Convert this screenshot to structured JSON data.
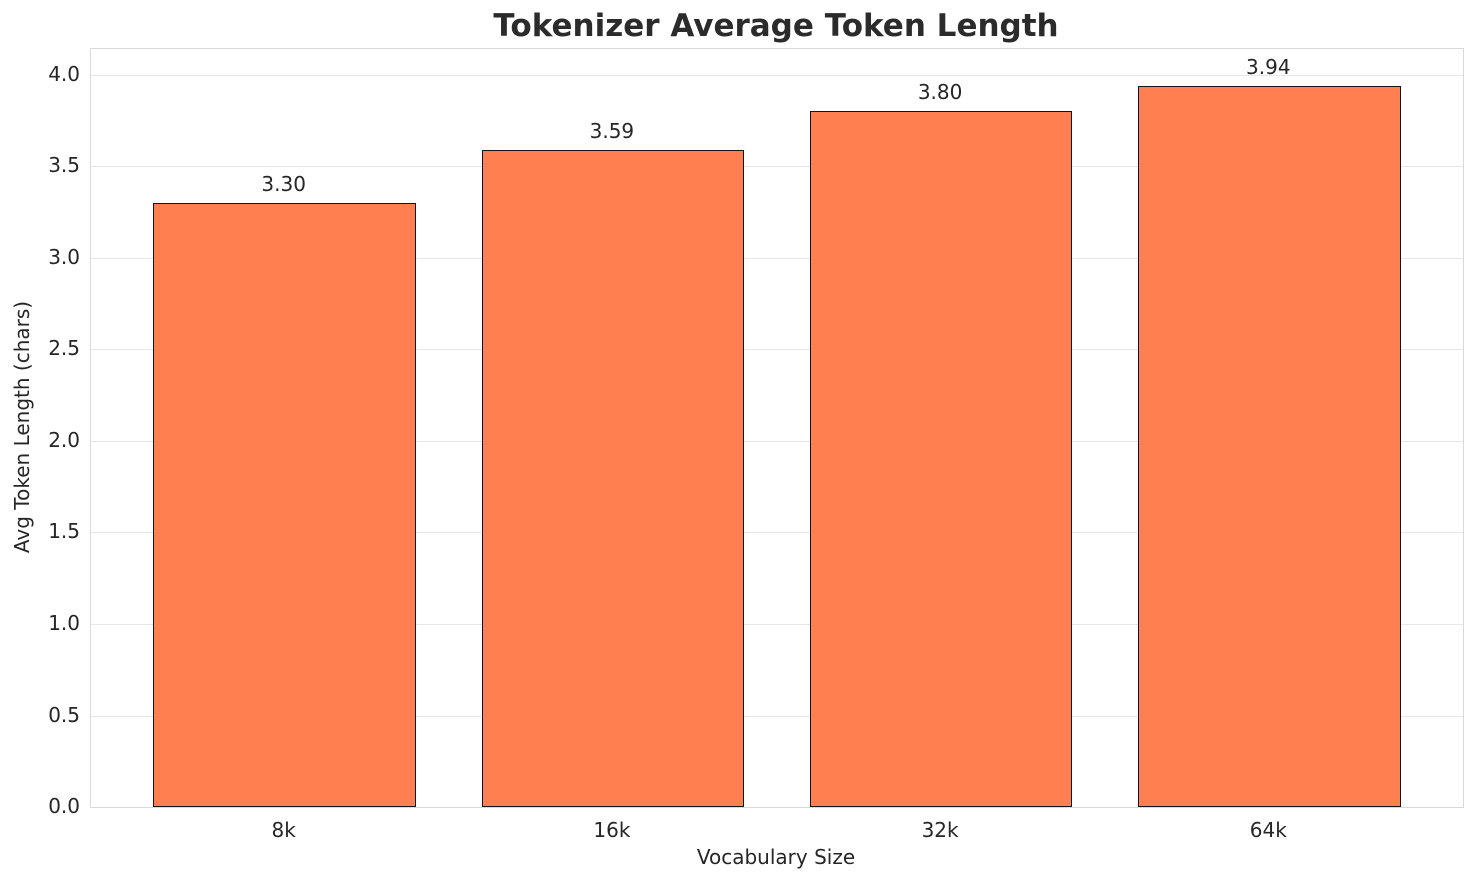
{
  "chart_data": {
    "type": "bar",
    "title": "Tokenizer Average Token Length",
    "xlabel": "Vocabulary Size",
    "ylabel": "Avg Token Length (chars)",
    "categories": [
      "8k",
      "16k",
      "32k",
      "64k"
    ],
    "values": [
      3.3,
      3.59,
      3.8,
      3.94
    ],
    "value_labels": [
      "3.30",
      "3.59",
      "3.80",
      "3.94"
    ],
    "ylim": [
      0,
      4.14
    ],
    "yticks": [
      0.0,
      0.5,
      1.0,
      1.5,
      2.0,
      2.5,
      3.0,
      3.5,
      4.0
    ],
    "ytick_labels": [
      "0.0",
      "0.5",
      "1.0",
      "1.5",
      "2.0",
      "2.5",
      "3.0",
      "3.5",
      "4.0"
    ],
    "bar_color": "#ff7f50",
    "bar_edge_color": "#141414",
    "grid": true,
    "legend": false,
    "bar_width_fraction": 0.8
  }
}
